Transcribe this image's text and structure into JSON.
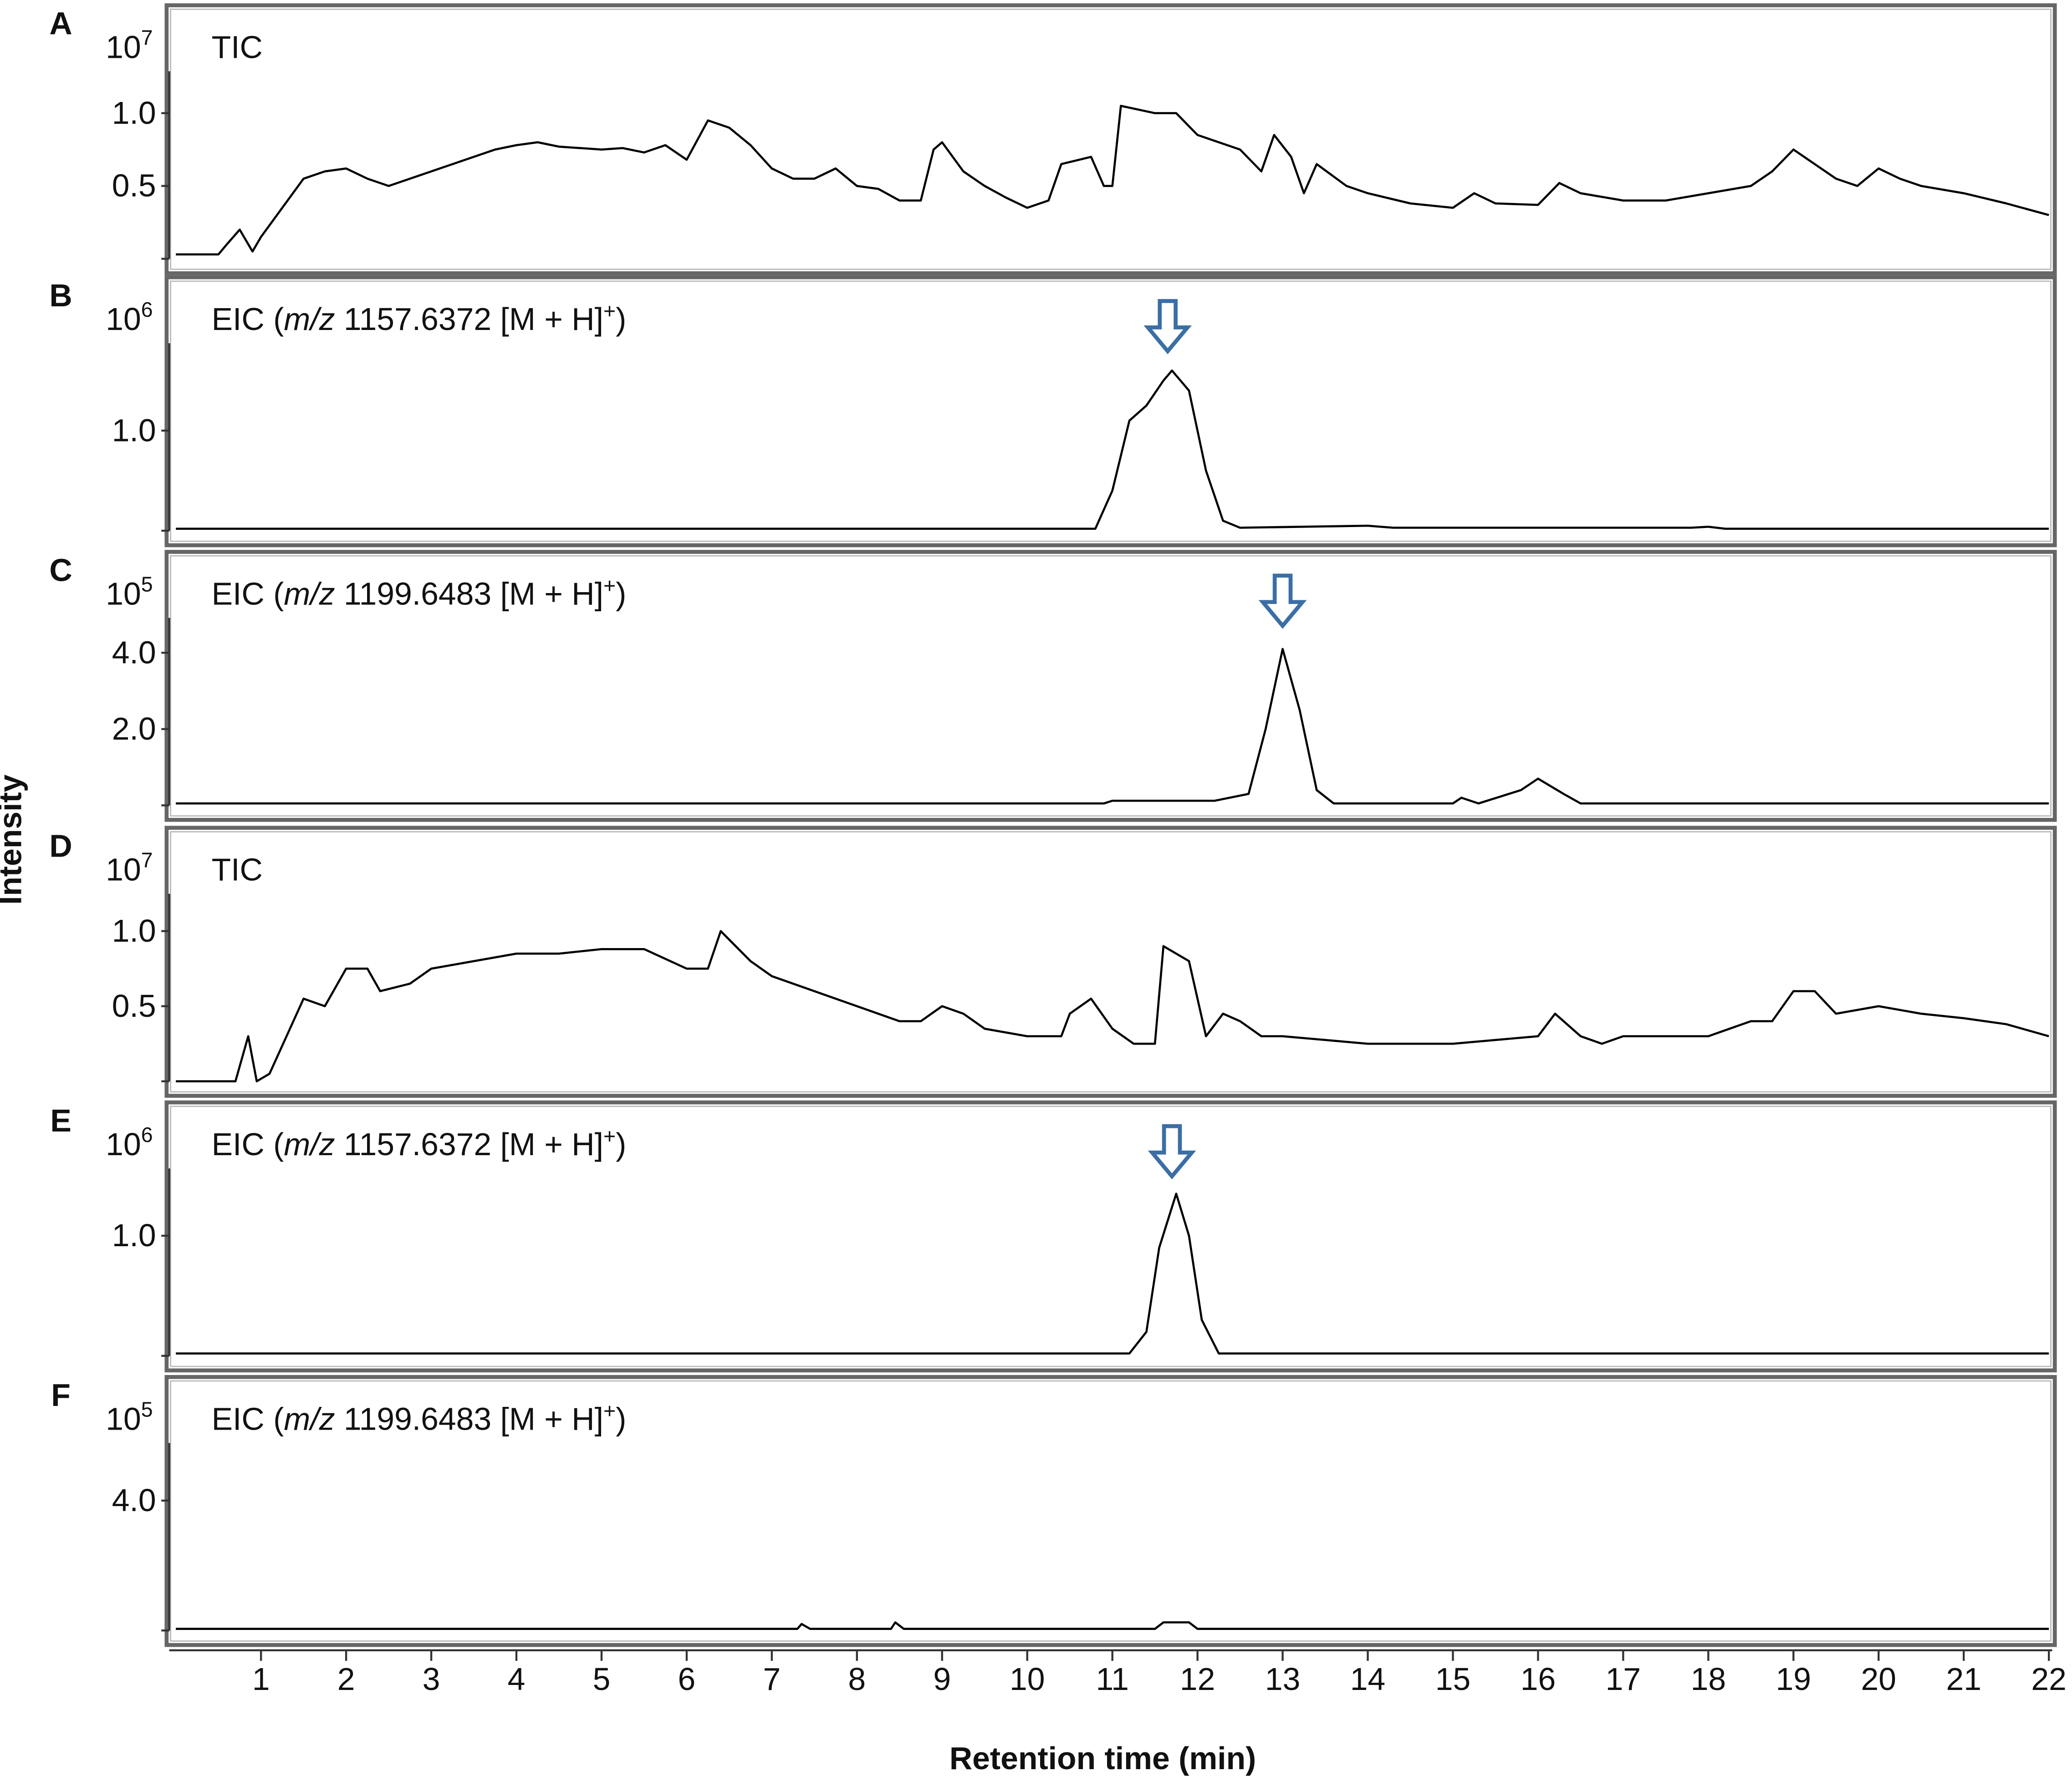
{
  "figure": {
    "ylabel": "Intensity",
    "xlabel": "Retention time (min)"
  },
  "chart_data": [
    {
      "type": "line",
      "panel_label": "A",
      "y_scale_base": "10",
      "y_scale_power": "7",
      "annotation_parts": [
        "TIC"
      ],
      "color": "#000000",
      "xlim": [
        0,
        22
      ],
      "ylim": [
        0,
        1.65
      ],
      "yticks": [
        {
          "value": 1,
          "label": "1.0"
        },
        0.5
      ],
      "x": [
        0,
        0.5,
        0.6,
        0.75,
        0.9,
        1.0,
        1.25,
        1.5,
        1.75,
        2.0,
        2.25,
        2.5,
        2.75,
        3.0,
        3.25,
        3.5,
        3.75,
        4.0,
        4.25,
        4.5,
        4.75,
        5.0,
        5.25,
        5.5,
        5.75,
        6.0,
        6.25,
        6.5,
        6.75,
        7.0,
        7.25,
        7.5,
        7.75,
        8.0,
        8.25,
        8.5,
        8.75,
        8.9,
        9.0,
        9.25,
        9.5,
        9.75,
        10.0,
        10.25,
        10.4,
        10.75,
        10.9,
        11.0,
        11.1,
        11.5,
        11.75,
        12.0,
        12.25,
        12.5,
        12.75,
        12.9,
        13.1,
        13.25,
        13.4,
        13.75,
        14.0,
        14.5,
        15.0,
        15.25,
        15.5,
        16.0,
        16.25,
        16.5,
        17.0,
        17.5,
        18.0,
        18.5,
        18.75,
        19.0,
        19.25,
        19.5,
        19.75,
        20.0,
        20.25,
        20.5,
        21.0,
        21.5,
        22.0
      ],
      "values": [
        0.03,
        0.03,
        0.1,
        0.2,
        0.05,
        0.15,
        0.35,
        0.55,
        0.6,
        0.62,
        0.55,
        0.5,
        0.55,
        0.6,
        0.65,
        0.7,
        0.75,
        0.78,
        0.8,
        0.77,
        0.76,
        0.75,
        0.76,
        0.73,
        0.78,
        0.68,
        0.95,
        0.9,
        0.78,
        0.62,
        0.55,
        0.55,
        0.62,
        0.5,
        0.48,
        0.4,
        0.4,
        0.75,
        0.8,
        0.6,
        0.5,
        0.42,
        0.35,
        0.4,
        0.65,
        0.7,
        0.5,
        0.5,
        1.05,
        1.0,
        1.0,
        0.85,
        0.8,
        0.75,
        0.6,
        0.85,
        0.7,
        0.45,
        0.65,
        0.5,
        0.45,
        0.38,
        0.35,
        0.45,
        0.38,
        0.37,
        0.52,
        0.45,
        0.4,
        0.4,
        0.45,
        0.5,
        0.6,
        0.75,
        0.65,
        0.55,
        0.5,
        0.62,
        0.55,
        0.5,
        0.45,
        0.38,
        0.3
      ]
    },
    {
      "type": "line",
      "panel_label": "B",
      "y_scale_base": "10",
      "y_scale_power": "6",
      "annotation_parts": [
        "EIC (",
        "m/z",
        " 1157.6372 [M + H]",
        "+",
        ")"
      ],
      "color": "#000000",
      "xlim": [
        0,
        22
      ],
      "ylim": [
        0,
        2.4
      ],
      "yticks": [
        {
          "value": 1,
          "label": "1.0"
        }
      ],
      "arrow_x": 11.65,
      "arrow_color": "#3b6ea5",
      "x": [
        0,
        10.8,
        11.0,
        11.2,
        11.4,
        11.6,
        11.7,
        11.9,
        12.1,
        12.3,
        12.5,
        14.0,
        14.3,
        17.8,
        18.0,
        18.2,
        22.0
      ],
      "values": [
        0.02,
        0.02,
        0.4,
        1.1,
        1.25,
        1.5,
        1.6,
        1.4,
        0.6,
        0.1,
        0.03,
        0.05,
        0.03,
        0.03,
        0.04,
        0.02,
        0.02
      ]
    },
    {
      "type": "line",
      "panel_label": "C",
      "y_scale_base": "10",
      "y_scale_power": "5",
      "annotation_parts": [
        "EIC (",
        "m/z",
        " 1199.6483 [M + H]",
        "+",
        ")"
      ],
      "color": "#000000",
      "xlim": [
        0,
        22
      ],
      "ylim": [
        0,
        6.3
      ],
      "yticks": [
        {
          "value": 4,
          "label": "4.0"
        },
        {
          "value": 2,
          "label": "2.0"
        }
      ],
      "arrow_x": 13.0,
      "arrow_color": "#3b6ea5",
      "x": [
        0,
        10.9,
        11.0,
        12.2,
        12.6,
        12.8,
        13.0,
        13.2,
        13.4,
        13.6,
        15.0,
        15.1,
        15.3,
        15.8,
        16.0,
        16.3,
        16.5,
        22.0
      ],
      "values": [
        0.05,
        0.05,
        0.12,
        0.12,
        0.3,
        2.0,
        4.1,
        2.5,
        0.4,
        0.05,
        0.05,
        0.2,
        0.05,
        0.4,
        0.7,
        0.3,
        0.05,
        0.05
      ]
    },
    {
      "type": "line",
      "panel_label": "D",
      "y_scale_base": "10",
      "y_scale_power": "7",
      "annotation_parts": [
        "TIC"
      ],
      "color": "#000000",
      "xlim": [
        0,
        22
      ],
      "ylim": [
        0,
        1.6
      ],
      "yticks": [
        {
          "value": 1,
          "label": "1.0"
        },
        0.5
      ],
      "x": [
        0,
        0.7,
        0.85,
        0.95,
        1.1,
        1.3,
        1.5,
        1.75,
        2.0,
        2.25,
        2.4,
        2.75,
        3.0,
        3.5,
        4.0,
        4.5,
        5.0,
        5.5,
        6.0,
        6.25,
        6.4,
        6.75,
        7.0,
        7.5,
        8.0,
        8.5,
        8.75,
        9.0,
        9.25,
        9.5,
        10.0,
        10.4,
        10.5,
        10.75,
        11.0,
        11.25,
        11.5,
        11.6,
        11.9,
        12.1,
        12.3,
        12.5,
        12.75,
        13.0,
        14.0,
        15.0,
        16.0,
        16.2,
        16.5,
        16.75,
        17.0,
        18.0,
        18.5,
        18.75,
        19.0,
        19.25,
        19.5,
        20.0,
        20.5,
        21.0,
        21.5,
        22.0
      ],
      "values": [
        0.0,
        0.0,
        0.3,
        0.0,
        0.05,
        0.3,
        0.55,
        0.5,
        0.75,
        0.75,
        0.6,
        0.65,
        0.75,
        0.8,
        0.85,
        0.85,
        0.88,
        0.88,
        0.75,
        0.75,
        1.0,
        0.8,
        0.7,
        0.6,
        0.5,
        0.4,
        0.4,
        0.5,
        0.45,
        0.35,
        0.3,
        0.3,
        0.45,
        0.55,
        0.35,
        0.25,
        0.25,
        0.9,
        0.8,
        0.3,
        0.45,
        0.4,
        0.3,
        0.3,
        0.25,
        0.25,
        0.3,
        0.45,
        0.3,
        0.25,
        0.3,
        0.3,
        0.4,
        0.4,
        0.6,
        0.6,
        0.45,
        0.5,
        0.45,
        0.42,
        0.38,
        0.3
      ]
    },
    {
      "type": "line",
      "panel_label": "E",
      "y_scale_base": "10",
      "y_scale_power": "6",
      "annotation_parts": [
        "EIC (",
        "m/z",
        " 1157.6372 [M + H]",
        "+",
        ")"
      ],
      "color": "#000000",
      "xlim": [
        0,
        22
      ],
      "ylim": [
        0,
        2.0
      ],
      "yticks": [
        {
          "value": 1,
          "label": "1.0"
        }
      ],
      "arrow_x": 11.7,
      "arrow_color": "#3b6ea5",
      "x": [
        0,
        11.2,
        11.4,
        11.55,
        11.75,
        11.9,
        12.05,
        12.25,
        22.0
      ],
      "values": [
        0.02,
        0.02,
        0.2,
        0.9,
        1.35,
        1.0,
        0.3,
        0.02,
        0.02
      ]
    },
    {
      "type": "line",
      "panel_label": "F",
      "y_scale_base": "10",
      "y_scale_power": "5",
      "annotation_parts": [
        "EIC (",
        "m/z",
        " 1199.6483 [M + H]",
        "+",
        ")"
      ],
      "color": "#000000",
      "xlim": [
        0,
        22
      ],
      "ylim": [
        0,
        7.4
      ],
      "yticks": [
        {
          "value": 4,
          "label": "4.0"
        }
      ],
      "xticks": [
        1,
        2,
        3,
        4,
        5,
        6,
        7,
        8,
        9,
        10,
        11,
        12,
        13,
        14,
        15,
        16,
        17,
        18,
        19,
        20,
        21,
        22
      ],
      "x": [
        0,
        7.3,
        7.35,
        7.45,
        8.4,
        8.45,
        8.55,
        11.5,
        11.6,
        11.9,
        12.0,
        22.0
      ],
      "values": [
        0.05,
        0.05,
        0.2,
        0.05,
        0.05,
        0.25,
        0.05,
        0.05,
        0.25,
        0.25,
        0.05,
        0.05
      ]
    }
  ]
}
